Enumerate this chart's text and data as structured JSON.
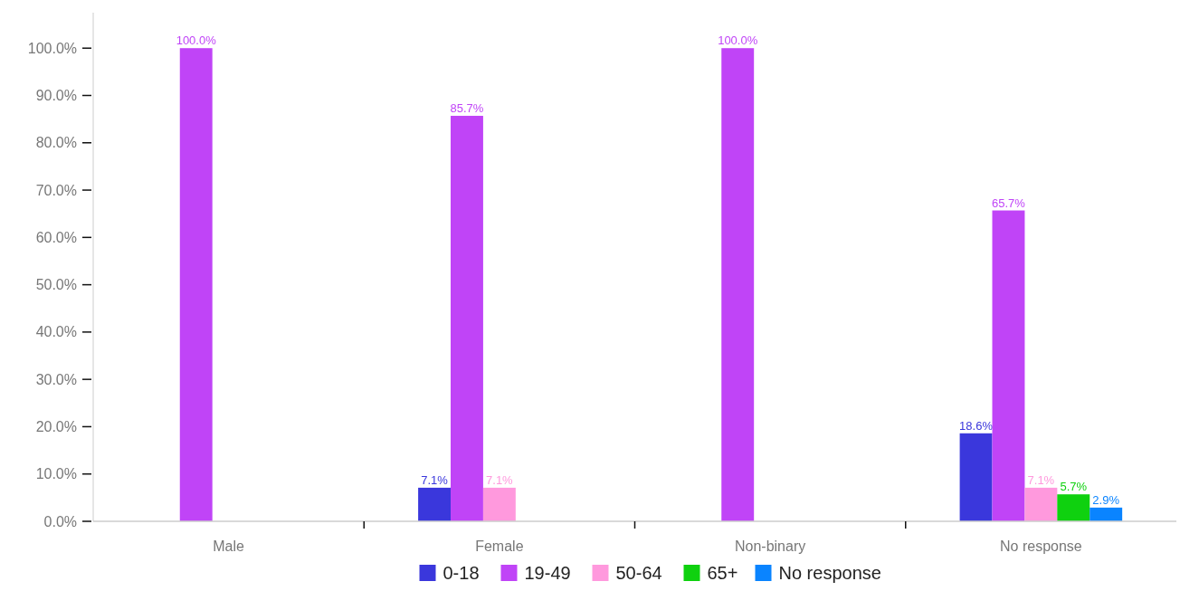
{
  "chart_data": {
    "type": "bar",
    "categories": [
      "Male",
      "Female",
      "Non-binary",
      "No response"
    ],
    "series": [
      {
        "name": "0-18",
        "color": "#3a37dc",
        "values": [
          0,
          7.1,
          0,
          18.6
        ],
        "value_labels": [
          null,
          "7.1%",
          null,
          "18.6%"
        ]
      },
      {
        "name": "19-49",
        "color": "#c044f7",
        "values": [
          100,
          85.7,
          100,
          65.7
        ],
        "value_labels": [
          "100.0%",
          "85.7%",
          "100.0%",
          "65.7%"
        ]
      },
      {
        "name": "50-64",
        "color": "#ff99dd",
        "values": [
          0,
          7.1,
          0,
          7.1
        ],
        "value_labels": [
          null,
          "7.1%",
          null,
          "7.1%"
        ]
      },
      {
        "name": "65+",
        "color": "#0fd10f",
        "values": [
          0,
          0,
          0,
          5.7
        ],
        "value_labels": [
          null,
          null,
          null,
          "5.7%"
        ]
      },
      {
        "name": "No response",
        "color": "#0a84ff",
        "values": [
          0,
          0,
          0,
          2.9
        ],
        "value_labels": [
          null,
          null,
          null,
          "2.9%"
        ]
      }
    ],
    "ylim": [
      0,
      107.5
    ],
    "yticks": [
      {
        "value": 0,
        "label": "0.0%"
      },
      {
        "value": 10,
        "label": "10.0%"
      },
      {
        "value": 20,
        "label": "20.0%"
      },
      {
        "value": 30,
        "label": "30.0%"
      },
      {
        "value": 40,
        "label": "40.0%"
      },
      {
        "value": 50,
        "label": "50.0%"
      },
      {
        "value": 60,
        "label": "60.0%"
      },
      {
        "value": 70,
        "label": "70.0%"
      },
      {
        "value": 80,
        "label": "80.0%"
      },
      {
        "value": 90,
        "label": "90.0%"
      },
      {
        "value": 100,
        "label": "100.0%"
      }
    ],
    "grid": false,
    "legend": "bottom"
  }
}
